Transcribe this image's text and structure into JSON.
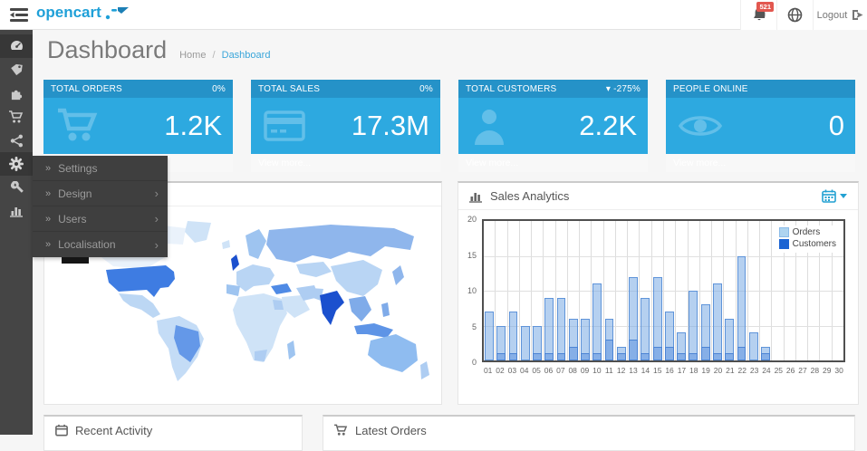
{
  "navbar": {
    "logo_text": "opencart",
    "notifications_count": "521",
    "logout_label": "Logout",
    "icons": [
      "menu-toggle-icon",
      "bell-icon",
      "globe-icon",
      "logout-icon"
    ]
  },
  "sidebar": {
    "icons": [
      "dashboard-icon",
      "catalog-tag-icon",
      "extensions-puzzle-icon",
      "sales-cart-icon",
      "marketing-share-icon",
      "system-gear-icon",
      "tools-wrench-icon",
      "reports-chart-icon"
    ],
    "flyout": {
      "bullet": "»",
      "chevron": "›",
      "items": [
        {
          "label": "Settings",
          "has_submenu": false
        },
        {
          "label": "Design",
          "has_submenu": true
        },
        {
          "label": "Users",
          "has_submenu": true
        },
        {
          "label": "Localisation",
          "has_submenu": true
        }
      ]
    }
  },
  "page": {
    "title": "Dashboard",
    "breadcrumb": {
      "home": "Home",
      "separator": "/",
      "current": "Dashboard"
    }
  },
  "tiles": [
    {
      "title": "TOTAL ORDERS",
      "badge_arrow": "",
      "badge": "0%",
      "value": "1.2K",
      "footer": "View more...",
      "icon": "shopping-cart-icon"
    },
    {
      "title": "TOTAL SALES",
      "badge_arrow": "",
      "badge": "0%",
      "value": "17.3M",
      "footer": "View more...",
      "icon": "credit-card-icon"
    },
    {
      "title": "TOTAL CUSTOMERS",
      "badge_arrow": "▾",
      "badge": "-275%",
      "value": "2.2K",
      "footer": "View more...",
      "icon": "user-icon"
    },
    {
      "title": "PEOPLE ONLINE",
      "badge_arrow": "",
      "badge": "",
      "value": "0",
      "footer": "View more...",
      "icon": "eye-icon"
    }
  ],
  "map_panel": {
    "icon": "world-map",
    "palette": {
      "dark": "#1b50ce",
      "strong": "#3e7ce2",
      "mid": "#7fabe9",
      "light": "#aecdf2",
      "pale": "#cfe3f7",
      "none": "#eaf2fb"
    }
  },
  "sales_panel": {
    "title": "Sales Analytics",
    "icons": [
      "bar-chart-icon",
      "calendar-icon",
      "caret-down-icon"
    ]
  },
  "chart_data": {
    "type": "bar",
    "title": "Sales Analytics",
    "x": [
      "01",
      "02",
      "03",
      "04",
      "05",
      "06",
      "07",
      "08",
      "09",
      "10",
      "11",
      "12",
      "13",
      "14",
      "15",
      "16",
      "17",
      "18",
      "19",
      "20",
      "21",
      "22",
      "23",
      "24",
      "25",
      "26",
      "27",
      "28",
      "29",
      "30"
    ],
    "series": [
      {
        "name": "Orders",
        "color": "#aed4f0",
        "values": [
          7,
          5,
          7,
          5,
          5,
          9,
          9,
          6,
          6,
          11,
          6,
          2,
          12,
          9,
          12,
          7,
          4,
          10,
          8,
          11,
          6,
          15,
          4,
          2,
          0,
          0,
          0,
          0,
          0,
          0
        ]
      },
      {
        "name": "Customers",
        "color": "#1b64d3",
        "values": [
          0,
          1,
          1,
          0,
          1,
          1,
          1,
          2,
          1,
          1,
          3,
          1,
          3,
          1,
          2,
          2,
          1,
          1,
          2,
          1,
          1,
          2,
          0,
          1,
          0,
          0,
          0,
          0,
          0,
          0
        ]
      }
    ],
    "ylim": [
      0,
      20
    ],
    "yticks": [
      0,
      5,
      10,
      15,
      20
    ],
    "grid": true,
    "legend_position": "top-right"
  },
  "bottom_panels": [
    {
      "title": "Recent Activity",
      "icon": "calendar-icon"
    },
    {
      "title": "Latest Orders",
      "icon": "cart-icon"
    }
  ],
  "colors": {
    "accent_blue": "#23a1d2",
    "tile_header": "#2592c8",
    "tile_body": "#2da9e0",
    "badge_red": "#e2574f",
    "sidebar_bg": "#454545",
    "flyout_bg": "#3f3f3f"
  }
}
